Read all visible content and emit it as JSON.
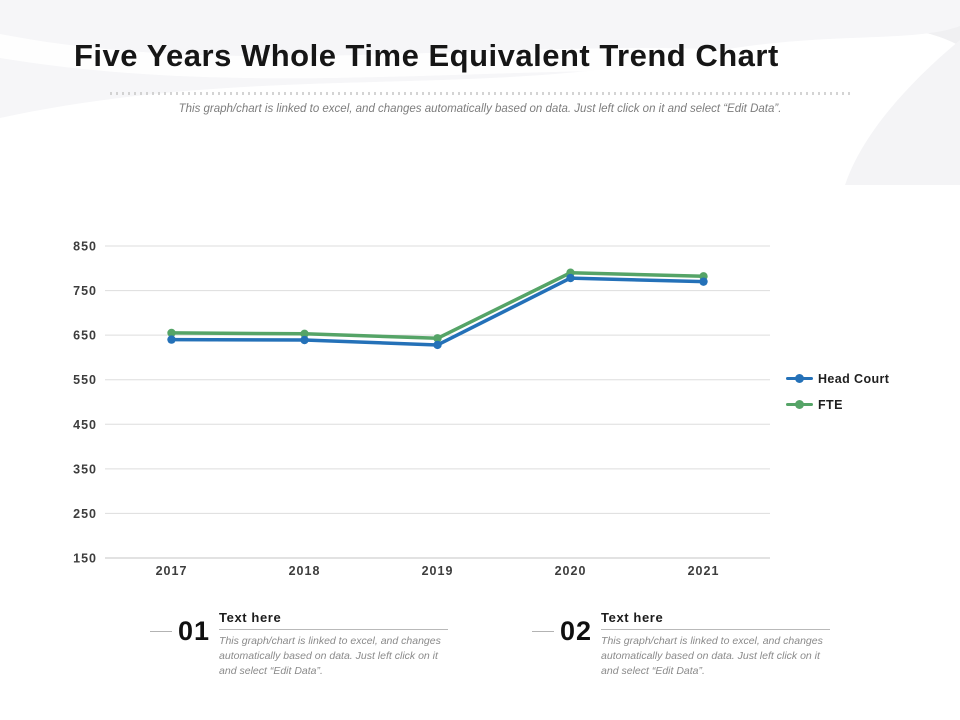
{
  "header": {
    "title": "Five Years Whole Time Equivalent Trend Chart",
    "subtitle": "This graph/chart is linked to excel, and changes automatically based on data. Just left click on it and select “Edit Data”."
  },
  "chart_data": {
    "type": "line",
    "categories": [
      "2017",
      "2018",
      "2019",
      "2020",
      "2021"
    ],
    "series": [
      {
        "name": "Head Court",
        "color": "#2471b8",
        "values": [
          640,
          639,
          628,
          778,
          770
        ]
      },
      {
        "name": "FTE",
        "color": "#55a467",
        "values": [
          655,
          653,
          643,
          790,
          782
        ]
      }
    ],
    "title": "",
    "xlabel": "",
    "ylabel": "",
    "ylim": [
      150,
      850
    ],
    "ytick_step": 100,
    "yticks": [
      150,
      250,
      350,
      450,
      550,
      650,
      750,
      850
    ],
    "grid": true,
    "legend_position": "right"
  },
  "notes": [
    {
      "number": "01",
      "title": "Text here",
      "text": "This graph/chart is linked to excel, and changes automatically based on data. Just left click on it and select “Edit Data”."
    },
    {
      "number": "02",
      "title": "Text here",
      "text": "This graph/chart is linked to excel, and changes automatically based on data. Just left click on it and select “Edit Data”."
    }
  ]
}
